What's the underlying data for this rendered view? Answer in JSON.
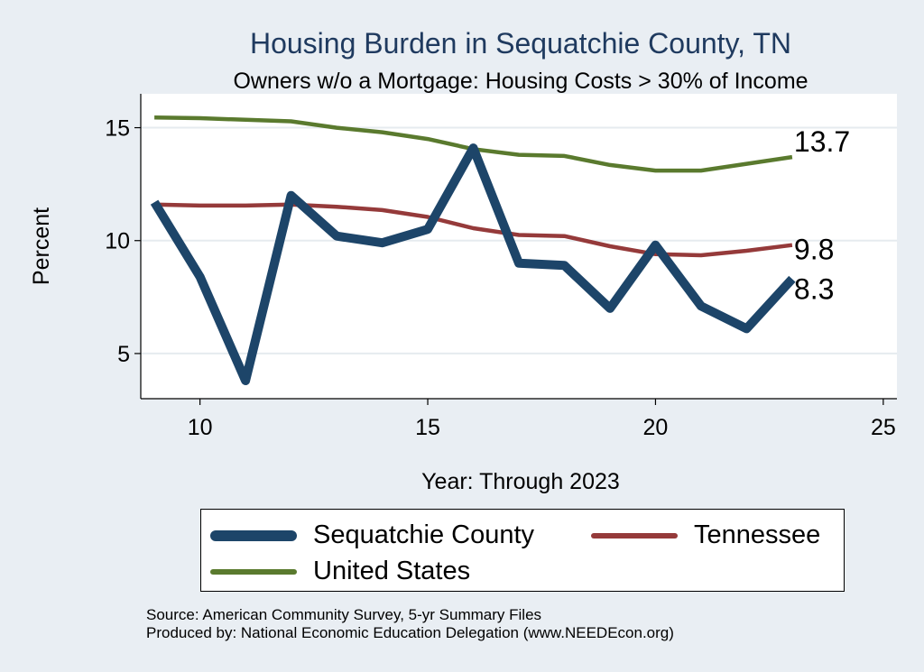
{
  "chart_data": {
    "type": "line",
    "title": "Housing Burden in Sequatchie County, TN",
    "subtitle": "Owners w/o a Mortgage: Housing Costs > 30% of Income",
    "xlabel": "Year: Through 2023",
    "ylabel": "Percent",
    "xlim": [
      8.7,
      25.3
    ],
    "ylim": [
      3,
      16.5
    ],
    "xticks": [
      10,
      15,
      20,
      25
    ],
    "yticks": [
      5,
      10,
      15
    ],
    "grid": "horizontal",
    "legend_position": "bottom",
    "series": [
      {
        "name": "Sequatchie County",
        "color": "#1d4569",
        "x": [
          9,
          10,
          11,
          12,
          13,
          14,
          15,
          16,
          17,
          18,
          19,
          20,
          21,
          22,
          23
        ],
        "y": [
          11.7,
          8.4,
          3.8,
          12.0,
          10.2,
          9.9,
          10.5,
          14.1,
          9.0,
          8.9,
          7.0,
          9.8,
          7.1,
          6.1,
          8.3
        ],
        "end_label": "8.3"
      },
      {
        "name": "Tennessee",
        "color": "#953a3a",
        "x": [
          9,
          10,
          11,
          12,
          13,
          14,
          15,
          16,
          17,
          18,
          19,
          20,
          21,
          22,
          23
        ],
        "y": [
          11.6,
          11.55,
          11.55,
          11.6,
          11.5,
          11.35,
          11.05,
          10.55,
          10.25,
          10.2,
          9.75,
          9.4,
          9.35,
          9.55,
          9.8
        ],
        "end_label": "9.8"
      },
      {
        "name": "United States",
        "color": "#5a7a2e",
        "x": [
          9,
          10,
          11,
          12,
          13,
          14,
          15,
          16,
          17,
          18,
          19,
          20,
          21,
          22,
          23
        ],
        "y": [
          15.45,
          15.42,
          15.35,
          15.28,
          15.0,
          14.8,
          14.5,
          14.05,
          13.8,
          13.75,
          13.35,
          13.1,
          13.1,
          13.4,
          13.7
        ],
        "end_label": "13.7"
      }
    ]
  },
  "legend": {
    "items": [
      "Sequatchie County",
      "Tennessee",
      "United States"
    ]
  },
  "source": {
    "line1": "Source: American Community Survey, 5-yr Summary Files",
    "line2": "Produced by: National Economic Education Delegation (www.NEEDEcon.org)"
  }
}
